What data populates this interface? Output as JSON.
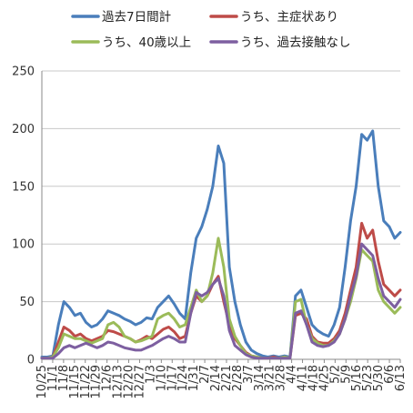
{
  "chart_data": {
    "type": "line",
    "title": "",
    "xlabel": "",
    "ylabel": "",
    "ylim": [
      0,
      250
    ],
    "yticks": [
      "0",
      "50",
      "100",
      "150",
      "200",
      "250"
    ],
    "grid": true,
    "legend": "top",
    "x_tick_labels": [
      "10/25",
      "11/1",
      "11/8",
      "11/15",
      "11/22",
      "11/29",
      "12/6",
      "12/13",
      "12/20",
      "12/27",
      "1/3",
      "1/10",
      "1/17",
      "1/24",
      "1/31",
      "2/7",
      "2/14",
      "2/21",
      "2/28",
      "3/7",
      "3/14",
      "3/21",
      "3/28",
      "4/4",
      "4/11",
      "4/18",
      "4/25",
      "5/2",
      "5/9",
      "5/16",
      "5/23",
      "5/30",
      "6/6",
      "6/13"
    ],
    "series": [
      {
        "name": "過去7日間計",
        "color": "#4a7ebb",
        "values": [
          2,
          2,
          3,
          30,
          50,
          45,
          38,
          40,
          32,
          28,
          30,
          35,
          42,
          40,
          38,
          35,
          33,
          30,
          32,
          36,
          35,
          45,
          50,
          55,
          48,
          40,
          35,
          75,
          105,
          115,
          130,
          150,
          185,
          170,
          80,
          50,
          30,
          15,
          8,
          5,
          3,
          2,
          3,
          2,
          3,
          2,
          55,
          60,
          45,
          30,
          25,
          22,
          20,
          30,
          45,
          80,
          120,
          150,
          195,
          190,
          198,
          150,
          120,
          115,
          105,
          110
        ]
      },
      {
        "name": "うち、主症状あり",
        "color": "#be4b48",
        "values": [
          1,
          1,
          2,
          15,
          28,
          25,
          20,
          22,
          18,
          16,
          18,
          20,
          25,
          24,
          22,
          20,
          18,
          15,
          17,
          20,
          18,
          22,
          26,
          28,
          24,
          18,
          20,
          40,
          55,
          50,
          55,
          65,
          72,
          50,
          30,
          18,
          12,
          6,
          3,
          2,
          1,
          1,
          2,
          1,
          2,
          1,
          38,
          40,
          35,
          20,
          15,
          14,
          14,
          18,
          25,
          40,
          60,
          80,
          118,
          105,
          112,
          85,
          65,
          60,
          55,
          60
        ]
      },
      {
        "name": "うち、40歳以上",
        "color": "#9bbb59",
        "values": [
          1,
          1,
          2,
          10,
          22,
          20,
          18,
          18,
          16,
          14,
          16,
          18,
          30,
          32,
          28,
          20,
          18,
          15,
          16,
          18,
          20,
          35,
          38,
          40,
          35,
          28,
          30,
          45,
          60,
          50,
          55,
          75,
          105,
          80,
          35,
          20,
          12,
          5,
          3,
          2,
          1,
          1,
          1,
          1,
          2,
          1,
          50,
          52,
          30,
          18,
          14,
          12,
          12,
          16,
          22,
          35,
          50,
          70,
          95,
          90,
          85,
          60,
          50,
          45,
          40,
          45
        ]
      },
      {
        "name": "うち、過去接触なし",
        "color": "#7d5fa0",
        "values": [
          1,
          1,
          1,
          5,
          10,
          12,
          10,
          12,
          14,
          12,
          10,
          12,
          15,
          14,
          12,
          10,
          9,
          8,
          8,
          10,
          12,
          15,
          18,
          20,
          18,
          15,
          15,
          40,
          58,
          55,
          58,
          65,
          70,
          55,
          25,
          12,
          8,
          4,
          2,
          1,
          1,
          1,
          1,
          1,
          1,
          1,
          40,
          42,
          30,
          15,
          12,
          11,
          12,
          15,
          22,
          35,
          55,
          72,
          100,
          95,
          90,
          70,
          55,
          50,
          45,
          52
        ]
      }
    ]
  }
}
